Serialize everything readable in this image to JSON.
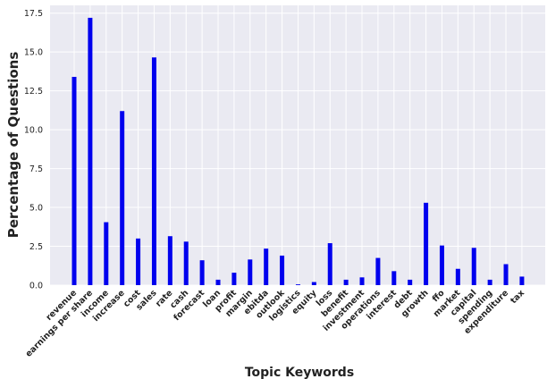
{
  "chart_data": {
    "type": "bar",
    "title": "",
    "xlabel": "Topic Keywords",
    "ylabel": "Percentage of Questions",
    "ylim": [
      0,
      18
    ],
    "yticks": [
      "0.0",
      "2.5",
      "5.0",
      "7.5",
      "10.0",
      "12.5",
      "15.0",
      "17.5"
    ],
    "grid": true,
    "legend": "none",
    "bar_color": "#0000ee",
    "background_color": "#eaeaf2",
    "grid_color": "#ffffff",
    "categories": [
      "revenue",
      "earnings per share",
      "income",
      "increase",
      "cost",
      "sales",
      "rate",
      "cash",
      "forecast",
      "loan",
      "profit",
      "margin",
      "ebitda",
      "outlook",
      "logistics",
      "equity",
      "loss",
      "benefit",
      "investment",
      "operations",
      "interest",
      "debt",
      "growth",
      "ffo",
      "market",
      "capital",
      "spending",
      "expenditure",
      "tax"
    ],
    "values": [
      13.4,
      17.2,
      4.05,
      11.2,
      3.0,
      14.65,
      3.15,
      2.8,
      1.6,
      0.35,
      0.8,
      1.65,
      2.35,
      1.9,
      0.05,
      0.2,
      2.7,
      0.35,
      0.5,
      1.75,
      0.9,
      0.35,
      5.3,
      2.55,
      1.05,
      2.4,
      0.35,
      1.35,
      0.55
    ]
  }
}
